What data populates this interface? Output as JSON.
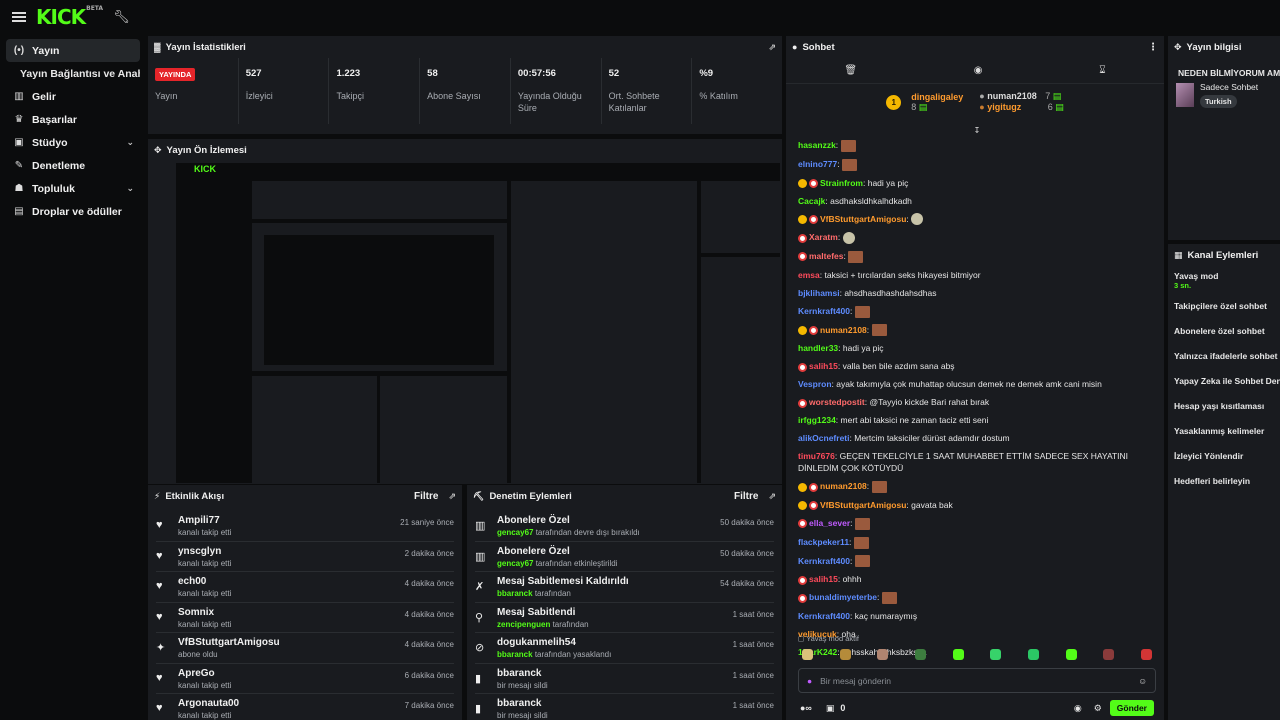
{
  "header": {
    "logo": "KICK",
    "logo_tag": "BETA"
  },
  "sidebar": {
    "items": [
      {
        "label": "Yayın",
        "icon": "broadcast-icon",
        "active": true
      },
      {
        "label": "Yayın Bağlantısı ve Anahtarı",
        "sub": true
      },
      {
        "label": "Gelir",
        "icon": "chart-icon"
      },
      {
        "label": "Başarılar",
        "icon": "trophy-icon"
      },
      {
        "label": "Stüdyo",
        "icon": "studio-icon",
        "expandable": true
      },
      {
        "label": "Denetleme",
        "icon": "wrench-icon"
      },
      {
        "label": "Topluluk",
        "icon": "community-icon",
        "expandable": true
      },
      {
        "label": "Droplar ve ödüller",
        "icon": "gift-icon"
      }
    ]
  },
  "stats_panel": {
    "title": "Yayın İstatistikleri",
    "live_badge": "YAYINDA",
    "items": [
      {
        "value": "",
        "label": "Yayın"
      },
      {
        "value": "527",
        "label": "İzleyici"
      },
      {
        "value": "1.223",
        "label": "Takipçi"
      },
      {
        "value": "58",
        "label": "Abone Sayısı"
      },
      {
        "value": "00:57:56",
        "label": "Yayında Olduğu Süre"
      },
      {
        "value": "52",
        "label": "Ort. Sohbete Katılanlar"
      },
      {
        "value": "%9",
        "label": "% Katılım"
      }
    ]
  },
  "preview_panel": {
    "title": "Yayın Ön İzlemesi"
  },
  "activity_panel": {
    "title": "Etkinlik Akışı",
    "filter": "Filtre",
    "rows": [
      {
        "name": "Ampili77",
        "action": "kanalı takip etti",
        "time": "21 saniye önce",
        "icon": "heart-icon"
      },
      {
        "name": "ynscglyn",
        "action": "kanalı takip etti",
        "time": "2 dakika önce",
        "icon": "heart-icon"
      },
      {
        "name": "ech00",
        "action": "kanalı takip etti",
        "time": "4 dakika önce",
        "icon": "heart-icon"
      },
      {
        "name": "Somnix",
        "action": "kanalı takip etti",
        "time": "4 dakika önce",
        "icon": "heart-icon"
      },
      {
        "name": "VfBStuttgartAmigosu",
        "action": "abone oldu",
        "time": "4 dakika önce",
        "icon": "sparkle-icon"
      },
      {
        "name": "ApreGo",
        "action": "kanalı takip etti",
        "time": "6 dakika önce",
        "icon": "heart-icon"
      },
      {
        "name": "Argonauta00",
        "action": "kanalı takip etti",
        "time": "7 dakika önce",
        "icon": "heart-icon"
      }
    ]
  },
  "moderation_panel": {
    "title": "Denetim Eylemleri",
    "filter": "Filtre",
    "rows": [
      {
        "title": "Abonelere Özel",
        "user": "gencay67",
        "action": "tarafından devre dışı bırakıldı",
        "time": "50 dakika önce",
        "icon": "gift-icon"
      },
      {
        "title": "Abonelere Özel",
        "user": "gencay67",
        "action": "tarafından etkinleştirildi",
        "time": "50 dakika önce",
        "icon": "gift-icon"
      },
      {
        "title": "Mesaj Sabitlemesi Kaldırıldı",
        "user": "bbaranck",
        "action": "tarafından",
        "time": "54 dakika önce",
        "icon": "unpin-icon"
      },
      {
        "title": "Mesaj Sabitlendi",
        "user": "zencipenguen",
        "action": "tarafından",
        "time": "1 saat önce",
        "icon": "pin-icon"
      },
      {
        "title": "dogukanmelih54",
        "user": "bbaranck",
        "action": "tarafından yasaklandı",
        "time": "1 saat önce",
        "icon": "ban-icon"
      },
      {
        "title": "bbaranck",
        "user": "",
        "action": "bir mesajı sildi",
        "time": "1 saat önce",
        "icon": "trash-icon"
      },
      {
        "title": "bbaranck",
        "user": "",
        "action": "bir mesajı sildi",
        "time": "1 saat önce",
        "icon": "trash-icon"
      }
    ]
  },
  "chat": {
    "title": "Sohbet",
    "gifters": [
      {
        "rank": "1",
        "name": "dingaligaley",
        "count": "8"
      },
      {
        "name": "numan2108",
        "count": "7"
      },
      {
        "name": "yigitugz",
        "count": "6"
      }
    ],
    "messages": [
      {
        "user": "hasanzzk",
        "color": "#53fc18",
        "text": "",
        "emote": true
      },
      {
        "user": "elnino777",
        "color": "#5e8cff",
        "text": "",
        "emote": true
      },
      {
        "user": "Strainfrom",
        "color": "#53fc18",
        "text": "hadi ya piç",
        "badges": [
          "o",
          "p"
        ]
      },
      {
        "user": "Cacajk",
        "color": "#53fc18",
        "text": "asdhaksldhkalhdkadh"
      },
      {
        "user": "VfBStuttgartAmigosu",
        "color": "#ff9b2e",
        "text": "",
        "badges": [
          "o",
          "p"
        ],
        "emote_s": true
      },
      {
        "user": "Xaratm",
        "color": "#ff6b6b",
        "text": "",
        "badges": [
          "p"
        ],
        "emote_s": true
      },
      {
        "user": "maltefes",
        "color": "#ff6b6b",
        "text": "",
        "badges": [
          "p"
        ],
        "emote": true
      },
      {
        "user": "emsa",
        "color": "#ff4b5c",
        "text": "taksici + tırcılardan seks hikayesi bitmiyor"
      },
      {
        "user": "bjklihamsi",
        "color": "#5e8cff",
        "text": "ahsdhasdhashdahsdhas"
      },
      {
        "user": "Kernkraft400",
        "color": "#5e8cff",
        "text": "",
        "emote": true
      },
      {
        "user": "numan2108",
        "color": "#ff9b2e",
        "text": "",
        "badges": [
          "o",
          "p"
        ],
        "emote": true
      },
      {
        "user": "handler33",
        "color": "#53fc18",
        "text": "hadi ya piç"
      },
      {
        "user": "salih15",
        "color": "#ff4b5c",
        "text": "valla ben bile azdım sana abş",
        "badges": [
          "p"
        ]
      },
      {
        "user": "Vespron",
        "color": "#5e8cff",
        "text": "ayak takımıyla çok muhattap olucsun demek ne demek amk cani misin"
      },
      {
        "user": "worstedpostit",
        "color": "#ff6b6b",
        "text": "@Tayyio kickde Bari rahat bırak",
        "badges": [
          "p"
        ]
      },
      {
        "user": "irfgg1234",
        "color": "#53fc18",
        "text": "mert abi taksici ne zaman taciz etti seni"
      },
      {
        "user": "alikOcnefreti",
        "color": "#5e8cff",
        "text": "Mertcim taksiciler dürüst adamdır dostum"
      },
      {
        "user": "timu7676",
        "color": "#ff4b5c",
        "text": "GEÇEN TEKELCİYLE 1 SAAT MUHABBET ETTİM SADECE SEX HAYATINI DİNLEDİM ÇOK KÖTÜYDÜ"
      },
      {
        "user": "numan2108",
        "color": "#ff9b2e",
        "text": "",
        "badges": [
          "o",
          "p"
        ],
        "emote": true
      },
      {
        "user": "VfBStuttgartAmigosu",
        "color": "#ff9b2e",
        "text": "gavata bak",
        "badges": [
          "o",
          "p"
        ]
      },
      {
        "user": "ella_sever",
        "color": "#c05bff",
        "text": "",
        "badges": [
          "p"
        ],
        "emote": true
      },
      {
        "user": "flackpeker11",
        "color": "#5e8cff",
        "text": "",
        "emote": true
      },
      {
        "user": "Kernkraft400",
        "color": "#5e8cff",
        "text": "",
        "emote": true
      },
      {
        "user": "salih15",
        "color": "#ff4b5c",
        "text": "ohhh",
        "badges": [
          "p"
        ]
      },
      {
        "user": "bunaldimyeterbe",
        "color": "#5e8cff",
        "text": "",
        "badges": [
          "p"
        ],
        "emote": true
      },
      {
        "user": "Kernkraft400",
        "color": "#5e8cff",
        "text": "kaç numaraymış"
      },
      {
        "user": "velikucuk",
        "color": "#ff9b2e",
        "text": "oha"
      },
      {
        "user": "1DarK242",
        "color": "#53fc18",
        "text": "ahhsskahkshksbzkska"
      }
    ],
    "slow_mode_label": "Yavaş mod aktif",
    "input_placeholder": "Bir mesaj gönderin",
    "points": "0",
    "send_label": "Gönder"
  },
  "stream_info": {
    "title": "Yayın bilgisi",
    "stream_title": "NEDEN BİLMİYORUM AMA",
    "category": "Sadece Sohbet",
    "language": "Turkish"
  },
  "channel_actions": {
    "title": "Kanal Eylemleri",
    "items": [
      {
        "label": "Yavaş mod",
        "sub": "3 sn."
      },
      {
        "label": "Takipçilere özel sohbet"
      },
      {
        "label": "Abonelere özel sohbet"
      },
      {
        "label": "Yalnızca ifadelerle sohbet"
      },
      {
        "label": "Yapay Zeka ile Sohbet Denetimi"
      },
      {
        "label": "Hesap yaşı kısıtlaması"
      },
      {
        "label": "Yasaklanmış kelimeler"
      },
      {
        "label": "İzleyici Yönlendir"
      },
      {
        "label": "Hedefleri belirleyin"
      }
    ]
  },
  "colors": {
    "accent": "#53fc18",
    "live": "#e5252a",
    "panel": "#191b1f",
    "bg": "#0b0c0d"
  }
}
